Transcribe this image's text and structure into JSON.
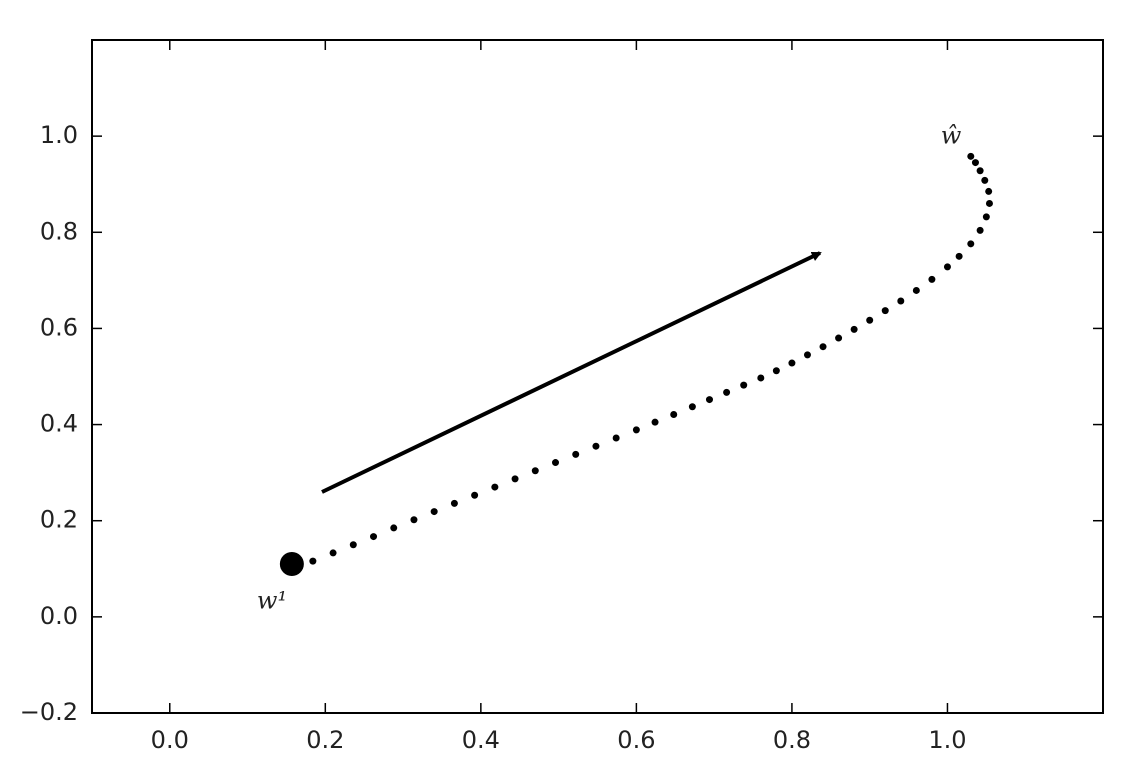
{
  "chart_data": {
    "type": "scatter",
    "xlim": [
      -0.1,
      1.2
    ],
    "ylim": [
      -0.2,
      1.2
    ],
    "xticks": [
      {
        "value": 0,
        "label": "0.0"
      },
      0.2,
      0.4,
      0.6,
      0.8,
      {
        "value": 1,
        "label": "1.0"
      }
    ],
    "yticks": [
      {
        "value": -0.2,
        "label": "−0.2"
      },
      {
        "value": 0,
        "label": "0.0"
      },
      0.2,
      0.4,
      0.6,
      0.8,
      {
        "value": 1,
        "label": "1.0"
      }
    ],
    "grid": false,
    "annotations": [
      "w¹",
      "ŵ"
    ],
    "series": [
      {
        "color": "#000000",
        "marker_size": 12,
        "x": [
          0.157
        ],
        "values": [
          0.11
        ]
      },
      {
        "color": "#000000",
        "marker_size": 3.5,
        "x": [
          0.184,
          0.21,
          0.236,
          0.262,
          0.288,
          0.314,
          0.34,
          0.366,
          0.392,
          0.418,
          0.444,
          0.47,
          0.496,
          0.522,
          0.548,
          0.574,
          0.6,
          0.624,
          0.648,
          0.672,
          0.694,
          0.716,
          0.738,
          0.76,
          0.78,
          0.8,
          0.82,
          0.84,
          0.86,
          0.88,
          0.9,
          0.92,
          0.94,
          0.96,
          0.98,
          1.0,
          1.015,
          1.03,
          1.042,
          1.05,
          1.054,
          1.053,
          1.048,
          1.042,
          1.036,
          1.03
        ],
        "values": [
          0.116,
          0.133,
          0.15,
          0.167,
          0.185,
          0.202,
          0.219,
          0.236,
          0.253,
          0.27,
          0.287,
          0.304,
          0.321,
          0.338,
          0.355,
          0.372,
          0.389,
          0.405,
          0.421,
          0.437,
          0.452,
          0.467,
          0.482,
          0.497,
          0.512,
          0.528,
          0.545,
          0.562,
          0.58,
          0.598,
          0.617,
          0.637,
          0.657,
          0.679,
          0.702,
          0.728,
          0.75,
          0.776,
          0.804,
          0.832,
          0.86,
          0.885,
          0.908,
          0.928,
          0.945,
          0.958
        ]
      }
    ]
  }
}
